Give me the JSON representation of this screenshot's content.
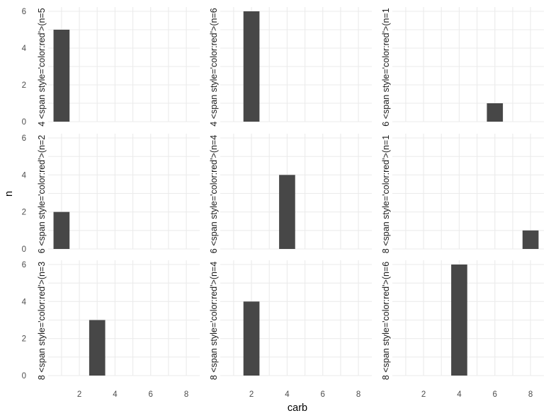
{
  "chart_data": {
    "type": "bar",
    "layout": "facet-grid-3x3",
    "xlabel": "carb",
    "ylabel": "n",
    "x_ticks": [
      2,
      4,
      6,
      8
    ],
    "y_ticks": [
      0,
      2,
      4,
      6
    ],
    "xlim": [
      0.25,
      8.75
    ],
    "ylim": [
      0,
      6
    ],
    "grid": true,
    "bar_color": "#474747",
    "grid_color": "#ebebeb",
    "panels": [
      {
        "strip_label": "4 <span style='color:red'>(n=5",
        "bars": [
          {
            "x": 1,
            "y": 5
          }
        ]
      },
      {
        "strip_label": "4 <span style='color:red'>(n=6",
        "bars": [
          {
            "x": 2,
            "y": 6
          }
        ]
      },
      {
        "strip_label": "6 <span style='color:red'>(n=1",
        "bars": [
          {
            "x": 6,
            "y": 1
          }
        ]
      },
      {
        "strip_label": "6 <span style='color:red'>(n=2",
        "bars": [
          {
            "x": 1,
            "y": 2
          }
        ]
      },
      {
        "strip_label": "6 <span style='color:red'>(n=4",
        "bars": [
          {
            "x": 4,
            "y": 4
          }
        ]
      },
      {
        "strip_label": "8 <span style='color:red'>(n=1",
        "bars": [
          {
            "x": 8,
            "y": 1
          }
        ]
      },
      {
        "strip_label": "8 <span style='color:red'>(n=3",
        "bars": [
          {
            "x": 3,
            "y": 3
          }
        ]
      },
      {
        "strip_label": "8 <span style='color:red'>(n=4",
        "bars": [
          {
            "x": 2,
            "y": 4
          }
        ]
      },
      {
        "strip_label": "8 <span style='color:red'>(n=6",
        "bars": [
          {
            "x": 4,
            "y": 6
          }
        ]
      }
    ]
  }
}
